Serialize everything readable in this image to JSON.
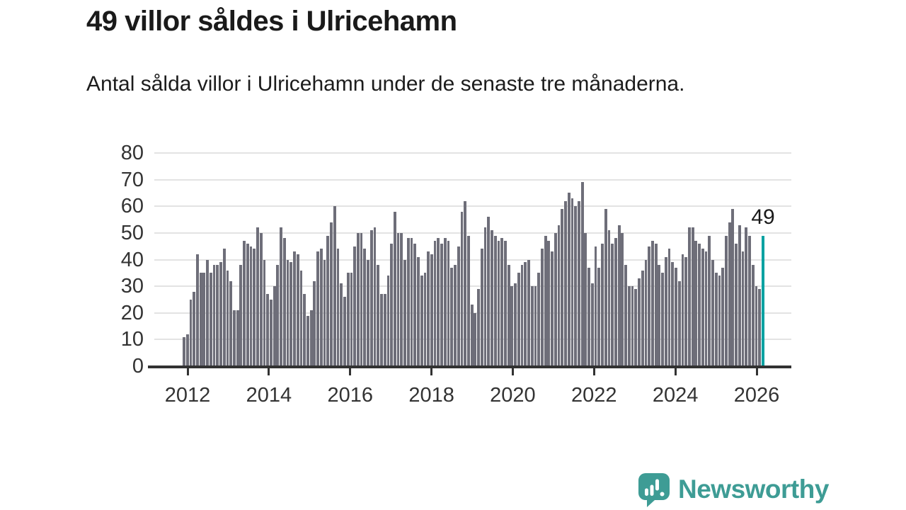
{
  "header": {
    "title": "49 villor såldes i Ulricehamn",
    "subtitle": "Antal sålda villor i Ulricehamn under de senaste tre månaderna."
  },
  "branding": {
    "name": "Newsworthy",
    "color": "#3E9C95"
  },
  "chart_data": {
    "type": "bar",
    "title": "49 villor såldes i Ulricehamn",
    "subtitle": "Antal sålda villor i Ulricehamn under de senaste tre månaderna.",
    "frequency": "monthly",
    "start_year": 2012,
    "xlabel": "",
    "ylabel": "",
    "ylim": [
      0,
      80
    ],
    "grid": true,
    "y_ticks": [
      0,
      10,
      20,
      30,
      40,
      50,
      60,
      70,
      80
    ],
    "x_tick_years": [
      2012,
      2014,
      2016,
      2018,
      2020,
      2022,
      2024,
      2026
    ],
    "bar_color": "#6e6e79",
    "values": [
      11,
      12,
      25,
      28,
      42,
      35,
      35,
      40,
      35,
      38,
      38,
      39,
      44,
      36,
      32,
      21,
      21,
      38,
      47,
      46,
      45,
      44,
      52,
      50,
      40,
      27,
      25,
      30,
      38,
      52,
      48,
      40,
      39,
      43,
      42,
      36,
      27,
      19,
      21,
      32,
      43,
      44,
      40,
      49,
      54,
      60,
      44,
      31,
      26,
      35,
      35,
      45,
      50,
      50,
      44,
      40,
      51,
      52,
      38,
      27,
      27,
      34,
      46,
      58,
      50,
      50,
      40,
      48,
      48,
      46,
      41,
      34,
      35,
      43,
      42,
      47,
      48,
      46,
      48,
      47,
      37,
      38,
      45,
      58,
      62,
      49,
      23,
      20,
      29,
      44,
      52,
      56,
      51,
      49,
      47,
      48,
      47,
      38,
      30,
      31,
      35,
      38,
      39,
      40,
      30,
      30,
      35,
      44,
      49,
      47,
      43,
      50,
      53,
      59,
      62,
      65,
      63,
      60,
      62,
      69,
      50,
      37,
      31,
      45,
      37,
      46,
      59,
      51,
      46,
      48,
      53,
      50,
      38,
      30,
      30,
      29,
      33,
      36,
      40,
      45,
      47,
      46,
      38,
      35,
      41,
      44,
      39,
      37,
      32,
      42,
      41,
      52,
      52,
      47,
      46,
      44,
      43,
      49,
      40,
      35,
      34,
      37,
      49,
      54,
      59,
      46,
      53,
      43,
      52,
      49,
      38,
      30,
      29,
      49
    ],
    "highlight": {
      "index_from_end": 1,
      "value": 49,
      "label": "49",
      "color": "#00a2a2"
    }
  }
}
